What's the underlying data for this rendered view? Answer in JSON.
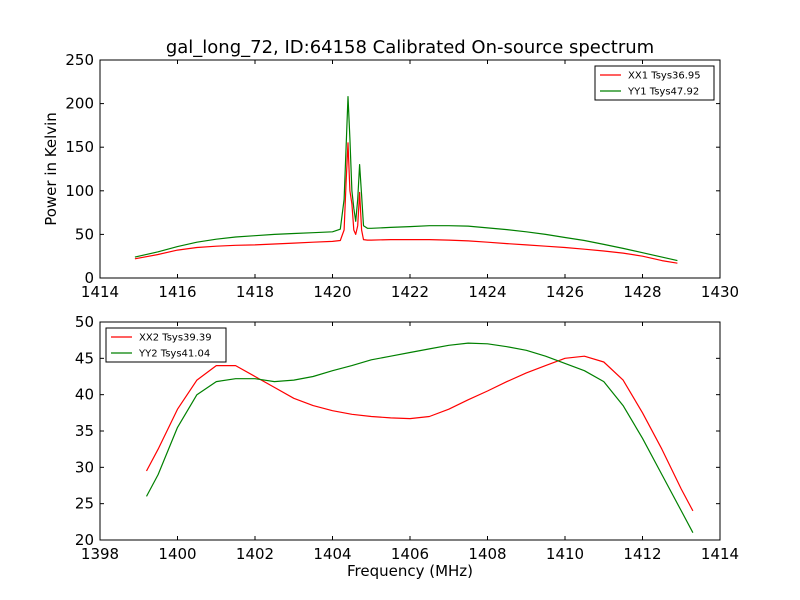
{
  "chart_data": [
    {
      "type": "line",
      "title": "gal_long_72, ID:64158 Calibrated On-source spectrum",
      "xlabel": "",
      "ylabel": "Power in Kelvin",
      "xlim": [
        1414,
        1430
      ],
      "ylim": [
        0,
        250
      ],
      "xticks": [
        "1414",
        "1416",
        "1418",
        "1420",
        "1422",
        "1424",
        "1426",
        "1428",
        "1430"
      ],
      "yticks": [
        "0",
        "50",
        "100",
        "150",
        "200",
        "250"
      ],
      "grid": false,
      "legend_position": "top-right",
      "series": [
        {
          "name": "XX1 Tsys36.95",
          "color": "#ff0000",
          "x": [
            1414.9,
            1415.5,
            1416.0,
            1416.5,
            1417.0,
            1417.5,
            1418.0,
            1418.5,
            1419.0,
            1419.5,
            1420.0,
            1420.2,
            1420.3,
            1420.35,
            1420.4,
            1420.45,
            1420.5,
            1420.55,
            1420.6,
            1420.65,
            1420.7,
            1420.75,
            1420.8,
            1420.9,
            1421.0,
            1421.5,
            1422.0,
            1422.5,
            1423.0,
            1423.5,
            1424.0,
            1424.5,
            1425.0,
            1425.5,
            1426.0,
            1426.5,
            1427.0,
            1427.5,
            1428.0,
            1428.5,
            1428.9
          ],
          "values": [
            22,
            27,
            32,
            35,
            36.5,
            37.5,
            38,
            39,
            40,
            41,
            42,
            43,
            55,
            110,
            155,
            100,
            85,
            55,
            50,
            60,
            98,
            55,
            44,
            43.5,
            43.5,
            44,
            44,
            44,
            43.5,
            42.5,
            41,
            39.5,
            38,
            36.5,
            35,
            33,
            31,
            28.5,
            25,
            20,
            17
          ]
        },
        {
          "name": "YY1 Tsys47.92",
          "color": "#008000",
          "x": [
            1414.9,
            1415.5,
            1416.0,
            1416.5,
            1417.0,
            1417.5,
            1418.0,
            1418.5,
            1419.0,
            1419.5,
            1420.0,
            1420.2,
            1420.3,
            1420.35,
            1420.4,
            1420.45,
            1420.5,
            1420.55,
            1420.6,
            1420.65,
            1420.7,
            1420.75,
            1420.8,
            1420.9,
            1421.0,
            1421.5,
            1422.0,
            1422.5,
            1423.0,
            1423.5,
            1424.0,
            1424.5,
            1425.0,
            1425.5,
            1426.0,
            1426.5,
            1427.0,
            1427.5,
            1428.0,
            1428.5,
            1428.9
          ],
          "values": [
            24,
            30,
            36,
            41,
            44.5,
            47,
            48.5,
            50,
            51,
            52,
            53,
            56,
            90,
            150,
            208,
            160,
            100,
            80,
            65,
            90,
            130,
            95,
            60,
            57,
            57,
            58,
            59,
            60,
            60,
            59.5,
            57.5,
            55.5,
            53,
            50,
            46.5,
            43,
            38.5,
            34,
            29,
            24,
            20
          ]
        }
      ]
    },
    {
      "type": "line",
      "title": "",
      "xlabel": "Frequency (MHz)",
      "ylabel": "",
      "xlim": [
        1398,
        1414
      ],
      "ylim": [
        20,
        50
      ],
      "xticks": [
        "1398",
        "1400",
        "1402",
        "1404",
        "1406",
        "1408",
        "1410",
        "1412",
        "1414"
      ],
      "yticks": [
        "20",
        "25",
        "30",
        "35",
        "40",
        "45",
        "50"
      ],
      "grid": false,
      "legend_position": "top-left",
      "series": [
        {
          "name": "XX2 Tsys39.39",
          "color": "#ff0000",
          "x": [
            1399.2,
            1399.5,
            1400.0,
            1400.5,
            1401.0,
            1401.5,
            1402.0,
            1402.5,
            1403.0,
            1403.5,
            1404.0,
            1404.5,
            1405.0,
            1405.5,
            1406.0,
            1406.5,
            1407.0,
            1407.5,
            1408.0,
            1408.5,
            1409.0,
            1409.5,
            1410.0,
            1410.5,
            1411.0,
            1411.5,
            1412.0,
            1412.5,
            1413.0,
            1413.3
          ],
          "values": [
            29.5,
            32.5,
            38,
            42,
            44,
            44,
            42.5,
            41,
            39.5,
            38.5,
            37.8,
            37.3,
            37,
            36.8,
            36.7,
            37,
            38,
            39.3,
            40.5,
            41.8,
            43,
            44,
            45,
            45.3,
            44.5,
            42,
            37.5,
            32.5,
            27,
            24
          ]
        },
        {
          "name": "YY2 Tsys41.04",
          "color": "#008000",
          "x": [
            1399.2,
            1399.5,
            1400.0,
            1400.5,
            1401.0,
            1401.5,
            1402.0,
            1402.5,
            1403.0,
            1403.5,
            1404.0,
            1404.5,
            1405.0,
            1405.5,
            1406.0,
            1406.5,
            1407.0,
            1407.5,
            1408.0,
            1408.5,
            1409.0,
            1409.5,
            1410.0,
            1410.5,
            1411.0,
            1411.5,
            1412.0,
            1412.5,
            1413.0,
            1413.3
          ],
          "values": [
            26,
            29,
            35.5,
            40,
            41.8,
            42.2,
            42.2,
            41.8,
            42,
            42.5,
            43.3,
            44,
            44.8,
            45.3,
            45.8,
            46.3,
            46.8,
            47.1,
            47,
            46.6,
            46.1,
            45.3,
            44.3,
            43.3,
            41.8,
            38.5,
            34,
            29,
            24,
            21
          ]
        }
      ]
    }
  ]
}
